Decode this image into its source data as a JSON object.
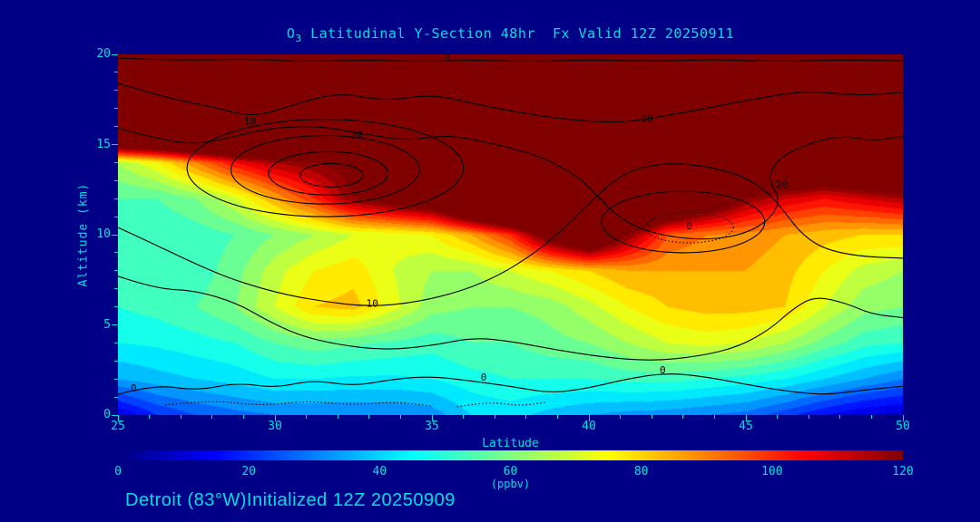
{
  "colors": {
    "background": "#000087",
    "text": "#00dfe0",
    "contour": "#000000",
    "jet_stops": [
      [
        "0%",
        "#000080"
      ],
      [
        "12.5%",
        "#0000ff"
      ],
      [
        "37.5%",
        "#00ffff"
      ],
      [
        "62.5%",
        "#ffff00"
      ],
      [
        "87.5%",
        "#ff0000"
      ],
      [
        "100%",
        "#800000"
      ]
    ]
  },
  "title": {
    "o3_prefix": "O",
    "o3_sub": "3",
    "rest": " Latitudinal Y-Section 48hr  Fx Valid 12Z 20250911"
  },
  "footer": {
    "text": "Detroit (83°W)Initialized 12Z 20250909"
  },
  "axes": {
    "x_label": "Latitude",
    "y_label": "Altitude (km)"
  },
  "colorbar": {
    "label": "(ppbv)",
    "ticks": [
      0,
      20,
      40,
      60,
      80,
      100,
      120
    ],
    "min": 0,
    "max": 120
  },
  "chart_data": {
    "type": "heatmap",
    "title": "O3 Latitudinal Y-Section 48hr Fx Valid 12Z 20250911",
    "xlabel": "Latitude",
    "ylabel": "Altitude (km)",
    "x_range": [
      25,
      50
    ],
    "y_range": [
      0,
      20
    ],
    "x_ticks": [
      25,
      30,
      35,
      40,
      45,
      50
    ],
    "y_ticks": [
      0,
      5,
      10,
      15,
      20
    ],
    "value_units": "ppbv",
    "value_range": [
      0,
      120
    ],
    "quantize_step": 5,
    "grid": {
      "lats": [
        25,
        26.25,
        27.5,
        28.75,
        30,
        31.25,
        32.5,
        33.75,
        35,
        36.25,
        37.5,
        38.75,
        40,
        41.25,
        42.5,
        43.75,
        45,
        46.25,
        47.5,
        48.75,
        50
      ],
      "alts": [
        0,
        2,
        4,
        6,
        8,
        10,
        12,
        14,
        16,
        18,
        20
      ],
      "ozone_ppbv": [
        [
          10,
          20,
          25,
          28,
          30,
          30,
          30,
          30,
          32,
          40,
          42,
          38,
          35,
          33,
          32,
          30,
          28,
          22,
          15,
          10,
          8
        ],
        [
          35,
          38,
          40,
          42,
          45,
          45,
          44,
          44,
          45,
          48,
          50,
          50,
          50,
          52,
          52,
          50,
          48,
          45,
          40,
          35,
          30
        ],
        [
          45,
          46,
          48,
          50,
          55,
          58,
          56,
          54,
          52,
          55,
          55,
          58,
          60,
          65,
          70,
          72,
          70,
          65,
          58,
          52,
          50
        ],
        [
          50,
          52,
          55,
          60,
          70,
          80,
          82,
          72,
          62,
          60,
          60,
          62,
          68,
          75,
          80,
          82,
          82,
          80,
          70,
          62,
          60
        ],
        [
          50,
          50,
          52,
          58,
          68,
          75,
          78,
          70,
          65,
          65,
          70,
          75,
          80,
          85,
          85,
          85,
          85,
          82,
          75,
          68,
          65
        ],
        [
          52,
          50,
          52,
          55,
          60,
          65,
          70,
          72,
          75,
          85,
          100,
          130,
          150,
          120,
          95,
          90,
          88,
          85,
          82,
          80,
          80
        ],
        [
          55,
          55,
          60,
          70,
          85,
          100,
          120,
          130,
          140,
          170,
          190,
          200,
          205,
          195,
          160,
          140,
          120,
          110,
          105,
          110,
          115
        ],
        [
          65,
          75,
          90,
          105,
          115,
          120,
          125,
          150,
          180,
          200,
          210,
          210,
          210,
          210,
          205,
          200,
          180,
          160,
          150,
          155,
          160
        ],
        [
          200,
          200,
          200,
          200,
          200,
          205,
          210,
          210,
          210,
          210,
          210,
          210,
          210,
          210,
          210,
          210,
          210,
          205,
          200,
          200,
          195
        ],
        [
          210,
          210,
          210,
          210,
          210,
          210,
          210,
          210,
          210,
          210,
          210,
          210,
          210,
          210,
          210,
          210,
          210,
          210,
          210,
          210,
          210
        ],
        [
          210,
          210,
          210,
          210,
          210,
          210,
          210,
          210,
          210,
          210,
          210,
          210,
          210,
          210,
          210,
          210,
          210,
          210,
          210,
          210,
          210
        ]
      ]
    },
    "wind_contours": {
      "ellipses": [
        {
          "c": [
            31.6,
            13.7
          ],
          "r": [
            4.4,
            2.7
          ],
          "dashed": false
        },
        {
          "c": [
            31.6,
            13.6
          ],
          "r": [
            3.0,
            1.9
          ],
          "dashed": false
        },
        {
          "c": [
            31.7,
            13.4
          ],
          "r": [
            1.9,
            1.2
          ],
          "dashed": false
        },
        {
          "c": [
            31.8,
            13.3
          ],
          "r": [
            1.0,
            0.65
          ],
          "dashed": false
        },
        {
          "c": [
            43.0,
            10.7
          ],
          "r": [
            2.6,
            1.7
          ],
          "dashed": false
        },
        {
          "c": [
            43.2,
            10.4
          ],
          "r": [
            1.4,
            0.85
          ],
          "dashed": true
        }
      ],
      "lines": [
        {
          "dashed": false,
          "pts": [
            [
              25,
              19.8
            ],
            [
              27,
              19.65
            ],
            [
              29,
              19.75
            ],
            [
              31,
              19.6
            ],
            [
              33,
              19.7
            ],
            [
              34.7,
              19.6
            ],
            [
              36.3,
              19.7
            ],
            [
              38,
              19.6
            ],
            [
              40,
              19.7
            ],
            [
              42,
              19.62
            ],
            [
              44,
              19.72
            ],
            [
              46,
              19.6
            ],
            [
              48,
              19.7
            ],
            [
              50,
              19.65
            ]
          ]
        },
        {
          "dashed": false,
          "pts": [
            [
              25,
              18.4
            ],
            [
              26.5,
              17.6
            ],
            [
              28,
              17.1
            ],
            [
              29.3,
              16.5
            ],
            [
              30.6,
              17.2
            ],
            [
              32,
              17.9
            ],
            [
              33.5,
              17.4
            ],
            [
              35,
              17.8
            ],
            [
              36.5,
              17.2
            ],
            [
              38,
              16.7
            ],
            [
              39.5,
              16.35
            ],
            [
              41,
              16.2
            ],
            [
              42.5,
              16.6
            ],
            [
              44,
              17.1
            ],
            [
              45.5,
              17.6
            ],
            [
              47,
              18.0
            ],
            [
              48.5,
              17.7
            ],
            [
              50,
              17.9
            ]
          ]
        },
        {
          "dashed": false,
          "pts": [
            [
              25,
              15.9
            ],
            [
              26.3,
              15.3
            ],
            [
              27.5,
              15.0
            ],
            [
              28.6,
              15.4
            ],
            [
              29.8,
              15.9
            ],
            [
              31.3,
              16.05
            ],
            [
              32.8,
              15.6
            ],
            [
              34.2,
              15.2
            ],
            [
              35.5,
              15.55
            ],
            [
              36.8,
              15.1
            ],
            [
              38,
              14.6
            ],
            [
              39,
              13.9
            ],
            [
              39.8,
              13.0
            ],
            [
              40.3,
              12.1
            ],
            [
              40.8,
              11.2
            ],
            [
              41.5,
              10.4
            ],
            [
              42.5,
              9.9
            ],
            [
              43.8,
              9.7
            ],
            [
              45,
              10.05
            ],
            [
              45.8,
              10.9
            ],
            [
              46.1,
              12.0
            ],
            [
              45.7,
              13.1
            ],
            [
              46.0,
              14.2
            ],
            [
              46.9,
              15.0
            ],
            [
              48,
              15.5
            ],
            [
              49,
              15.2
            ],
            [
              50,
              15.45
            ]
          ]
        },
        {
          "dashed": false,
          "pts": [
            [
              25,
              10.4
            ],
            [
              26,
              9.6
            ],
            [
              27.2,
              8.6
            ],
            [
              28.5,
              7.6
            ],
            [
              30,
              6.8
            ],
            [
              31.5,
              6.3
            ],
            [
              33,
              6.0
            ],
            [
              34.5,
              6.25
            ],
            [
              36,
              6.9
            ],
            [
              37.2,
              7.8
            ],
            [
              38.2,
              8.9
            ],
            [
              39,
              10.0
            ],
            [
              39.7,
              11.2
            ],
            [
              40.4,
              12.4
            ],
            [
              41.2,
              13.5
            ],
            [
              42.4,
              14.0
            ],
            [
              43.8,
              13.8
            ],
            [
              45,
              13.2
            ],
            [
              45.8,
              12.2
            ],
            [
              46.3,
              11.1
            ],
            [
              46.8,
              10.0
            ],
            [
              47.5,
              9.2
            ],
            [
              48.6,
              8.8
            ],
            [
              50,
              8.7
            ]
          ]
        },
        {
          "dashed": false,
          "pts": [
            [
              25,
              7.7
            ],
            [
              26.2,
              7.0
            ],
            [
              27.5,
              6.9
            ],
            [
              28.8,
              6.2
            ],
            [
              29.8,
              5.2
            ],
            [
              30.8,
              4.4
            ],
            [
              32,
              3.9
            ],
            [
              33.5,
              3.6
            ],
            [
              35,
              3.85
            ],
            [
              36.3,
              4.3
            ],
            [
              37.5,
              4.1
            ],
            [
              39,
              3.6
            ],
            [
              40.5,
              3.2
            ],
            [
              42,
              3.0
            ],
            [
              43.5,
              3.25
            ],
            [
              44.8,
              3.8
            ],
            [
              45.8,
              4.8
            ],
            [
              46.5,
              5.9
            ],
            [
              47.2,
              6.6
            ],
            [
              48.2,
              6.2
            ],
            [
              49,
              5.6
            ],
            [
              50,
              5.4
            ]
          ]
        },
        {
          "dashed": false,
          "pts": [
            [
              25,
              1.15
            ],
            [
              26.2,
              1.7
            ],
            [
              27.5,
              1.35
            ],
            [
              28.8,
              1.8
            ],
            [
              30,
              1.5
            ],
            [
              31.2,
              1.95
            ],
            [
              32.5,
              1.6
            ],
            [
              33.8,
              2.0
            ],
            [
              35,
              2.15
            ],
            [
              36.2,
              1.9
            ],
            [
              37.5,
              1.6
            ],
            [
              38.8,
              1.2
            ],
            [
              40,
              1.5
            ],
            [
              41.2,
              2.0
            ],
            [
              42.5,
              2.35
            ],
            [
              43.8,
              2.1
            ],
            [
              45,
              1.7
            ],
            [
              46.2,
              1.35
            ],
            [
              47.5,
              1.1
            ],
            [
              48.8,
              1.4
            ],
            [
              50,
              1.6
            ]
          ]
        },
        {
          "dashed": true,
          "pts": [
            [
              26.5,
              0.55
            ],
            [
              28,
              0.85
            ],
            [
              29.5,
              0.5
            ],
            [
              31,
              0.8
            ],
            [
              32.5,
              0.55
            ],
            [
              33.8,
              0.75
            ],
            [
              35,
              0.5
            ]
          ]
        },
        {
          "dashed": true,
          "pts": [
            [
              35.8,
              0.45
            ],
            [
              36.8,
              0.75
            ],
            [
              37.8,
              0.5
            ],
            [
              38.6,
              0.7
            ]
          ]
        }
      ],
      "labels": [
        {
          "lat": 29.2,
          "alt": 16.1,
          "text": "10"
        },
        {
          "lat": 32.6,
          "alt": 15.35,
          "text": "20"
        },
        {
          "lat": 41.85,
          "alt": 16.25,
          "text": "10"
        },
        {
          "lat": 46.15,
          "alt": 12.6,
          "text": "20"
        },
        {
          "lat": 33.1,
          "alt": 6.0,
          "text": "10"
        },
        {
          "lat": 35.5,
          "alt": 19.75,
          "text": "0"
        },
        {
          "lat": 25.5,
          "alt": 1.3,
          "text": "0"
        },
        {
          "lat": 36.65,
          "alt": 1.9,
          "text": "0"
        },
        {
          "lat": 42.35,
          "alt": 2.3,
          "text": "0"
        },
        {
          "lat": 43.2,
          "alt": 10.3,
          "text": "0"
        }
      ]
    }
  }
}
